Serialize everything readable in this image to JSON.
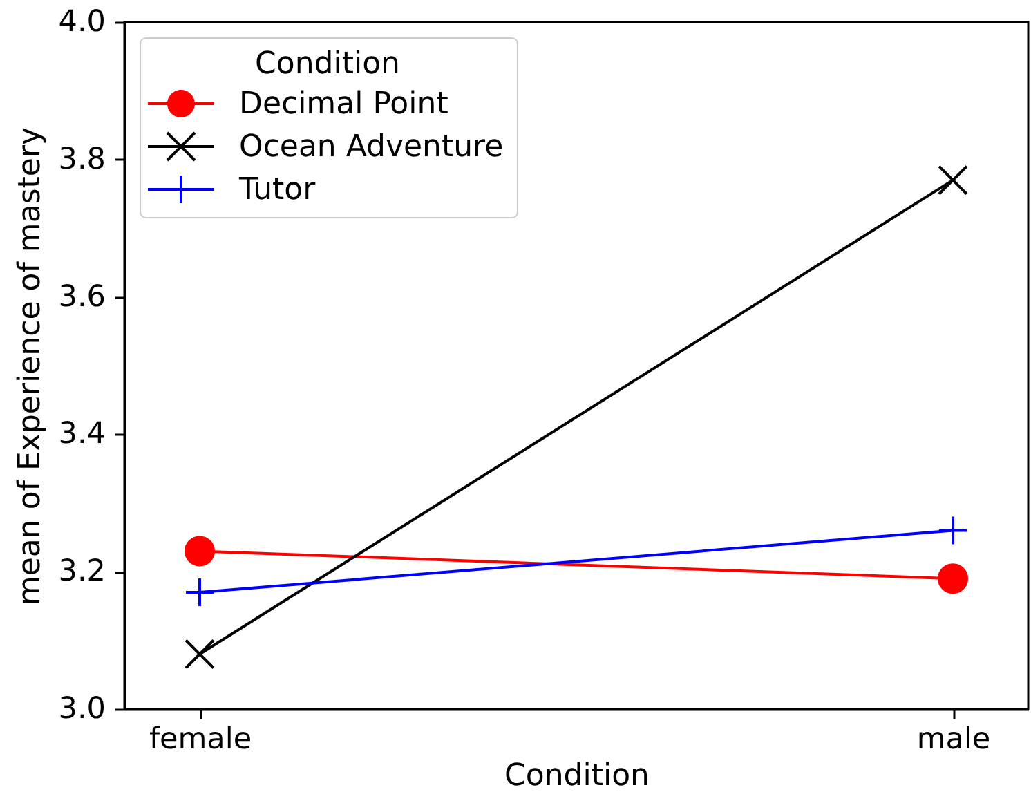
{
  "chart_data": {
    "type": "line",
    "xlabel": "Condition",
    "ylabel": "mean of Experience of mastery",
    "legend_title": "Condition",
    "legend": "top left",
    "categories": [
      "female",
      "male"
    ],
    "ylim": [
      3.0,
      4.0
    ],
    "yticks": [
      {
        "value": 3.0,
        "label": "3.0"
      },
      3.2,
      3.4,
      3.6,
      3.8,
      {
        "value": 4.0,
        "label": "4.0"
      }
    ],
    "series": [
      {
        "name": "Decimal Point",
        "color": "#ff0000",
        "marker": "circle",
        "values": [
          3.23,
          3.19
        ]
      },
      {
        "name": "Ocean Adventure",
        "color": "#000000",
        "marker": "cross",
        "values": [
          3.08,
          3.77
        ]
      },
      {
        "name": "Tutor",
        "color": "#0000ff",
        "marker": "plus",
        "values": [
          3.17,
          3.26
        ]
      }
    ]
  }
}
